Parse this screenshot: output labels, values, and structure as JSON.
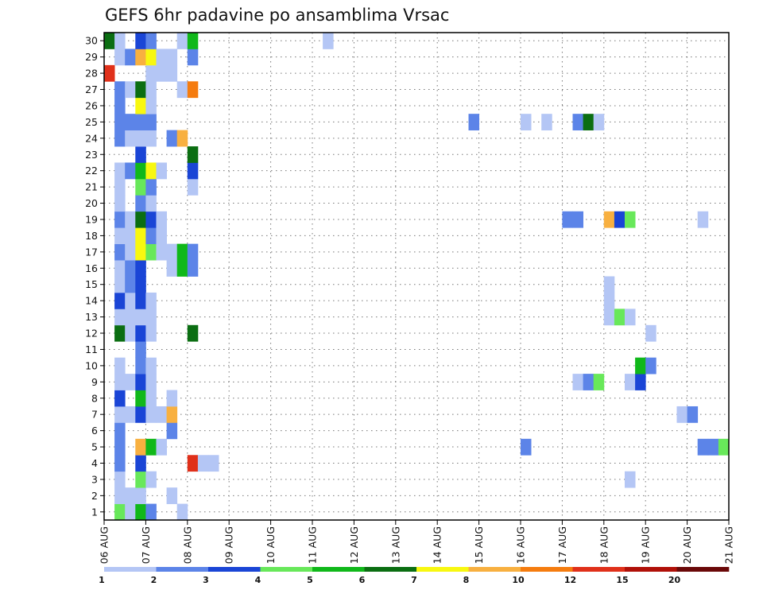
{
  "chart_data": {
    "type": "heatmap",
    "title": "GEFS 6hr padavine po ansamblima Vrsac",
    "xlabel": "",
    "ylabel": "",
    "x_ticks": [
      "06 AUG",
      "07 AUG",
      "08 AUG",
      "09 AUG",
      "10 AUG",
      "11 AUG",
      "12 AUG",
      "13 AUG",
      "14 AUG",
      "15 AUG",
      "16 AUG",
      "17 AUG",
      "18 AUG",
      "19 AUG",
      "20 AUG",
      "21 AUG"
    ],
    "y_ticks": [
      1,
      2,
      3,
      4,
      5,
      6,
      7,
      8,
      9,
      10,
      11,
      12,
      13,
      14,
      15,
      16,
      17,
      18,
      19,
      20,
      21,
      22,
      23,
      24,
      25,
      26,
      27,
      28,
      29,
      30
    ],
    "xlim_days": [
      0,
      15
    ],
    "time_step_hours": 6,
    "ylim": [
      0,
      30
    ],
    "grid": true,
    "legend_position": "bottom",
    "colorbar": {
      "levels": [
        "1",
        "2",
        "3",
        "4",
        "5",
        "6",
        "7",
        "8",
        "10",
        "12",
        "15",
        "20"
      ],
      "colors": [
        "#b4c6f5",
        "#5c84e8",
        "#1a45d6",
        "#68e85a",
        "#10b81a",
        "#0b6e12",
        "#f8f810",
        "#f8b040",
        "#f57c0f",
        "#e0301a",
        "#b01008",
        "#6a0808"
      ]
    },
    "value_encoding": "each cell stores the colorbar class index (1-12) of the 6-hour precipitation",
    "cells": [
      {
        "member": 1,
        "time_steps": [
          [
            1,
            4
          ],
          [
            2,
            1
          ],
          [
            3,
            5
          ],
          [
            4,
            2
          ],
          [
            7,
            1
          ]
        ]
      },
      {
        "member": 2,
        "time_steps": [
          [
            1,
            1
          ],
          [
            2,
            1
          ],
          [
            3,
            1
          ],
          [
            6,
            1
          ]
        ]
      },
      {
        "member": 3,
        "time_steps": [
          [
            1,
            1
          ],
          [
            3,
            4
          ],
          [
            4,
            1
          ],
          [
            50,
            1
          ]
        ]
      },
      {
        "member": 4,
        "time_steps": [
          [
            1,
            2
          ],
          [
            3,
            3
          ],
          [
            8,
            10
          ],
          [
            9,
            1
          ],
          [
            10,
            1
          ]
        ]
      },
      {
        "member": 5,
        "time_steps": [
          [
            1,
            2
          ],
          [
            3,
            8
          ],
          [
            4,
            5
          ],
          [
            5,
            1
          ],
          [
            40,
            2
          ],
          [
            57,
            2
          ],
          [
            58,
            2
          ],
          [
            59,
            4
          ]
        ]
      },
      {
        "member": 6,
        "time_steps": [
          [
            1,
            2
          ],
          [
            6,
            2
          ]
        ]
      },
      {
        "member": 7,
        "time_steps": [
          [
            1,
            1
          ],
          [
            2,
            1
          ],
          [
            3,
            3
          ],
          [
            4,
            1
          ],
          [
            5,
            1
          ],
          [
            6,
            8
          ],
          [
            55,
            1
          ],
          [
            56,
            2
          ]
        ]
      },
      {
        "member": 8,
        "time_steps": [
          [
            1,
            3
          ],
          [
            3,
            5
          ],
          [
            4,
            1
          ],
          [
            6,
            1
          ]
        ]
      },
      {
        "member": 9,
        "time_steps": [
          [
            1,
            1
          ],
          [
            2,
            1
          ],
          [
            3,
            3
          ],
          [
            4,
            1
          ],
          [
            45,
            1
          ],
          [
            46,
            2
          ],
          [
            47,
            4
          ],
          [
            50,
            1
          ],
          [
            51,
            3
          ]
        ]
      },
      {
        "member": 10,
        "time_steps": [
          [
            1,
            1
          ],
          [
            3,
            2
          ],
          [
            4,
            1
          ],
          [
            51,
            5
          ],
          [
            52,
            2
          ]
        ]
      },
      {
        "member": 11,
        "time_steps": [
          [
            3,
            2
          ]
        ]
      },
      {
        "member": 12,
        "time_steps": [
          [
            1,
            6
          ],
          [
            2,
            1
          ],
          [
            3,
            3
          ],
          [
            4,
            1
          ],
          [
            8,
            6
          ],
          [
            52,
            1
          ]
        ]
      },
      {
        "member": 13,
        "time_steps": [
          [
            1,
            1
          ],
          [
            2,
            1
          ],
          [
            3,
            1
          ],
          [
            4,
            1
          ],
          [
            48,
            1
          ],
          [
            49,
            4
          ],
          [
            50,
            1
          ]
        ]
      },
      {
        "member": 14,
        "time_steps": [
          [
            1,
            3
          ],
          [
            2,
            1
          ],
          [
            3,
            3
          ],
          [
            4,
            1
          ],
          [
            48,
            1
          ]
        ]
      },
      {
        "member": 15,
        "time_steps": [
          [
            1,
            1
          ],
          [
            2,
            2
          ],
          [
            3,
            3
          ],
          [
            48,
            1
          ]
        ]
      },
      {
        "member": 16,
        "time_steps": [
          [
            1,
            1
          ],
          [
            2,
            2
          ],
          [
            3,
            3
          ],
          [
            6,
            1
          ],
          [
            7,
            5
          ],
          [
            8,
            2
          ]
        ]
      },
      {
        "member": 17,
        "time_steps": [
          [
            1,
            2
          ],
          [
            2,
            1
          ],
          [
            3,
            7
          ],
          [
            4,
            4
          ],
          [
            5,
            1
          ],
          [
            6,
            1
          ],
          [
            7,
            5
          ],
          [
            8,
            2
          ]
        ]
      },
      {
        "member": 18,
        "time_steps": [
          [
            1,
            1
          ],
          [
            2,
            1
          ],
          [
            3,
            7
          ],
          [
            4,
            2
          ],
          [
            5,
            1
          ]
        ]
      },
      {
        "member": 19,
        "time_steps": [
          [
            1,
            2
          ],
          [
            2,
            1
          ],
          [
            3,
            6
          ],
          [
            4,
            3
          ],
          [
            5,
            1
          ],
          [
            44,
            2
          ],
          [
            45,
            2
          ],
          [
            48,
            8
          ],
          [
            49,
            3
          ],
          [
            50,
            4
          ],
          [
            57,
            1
          ]
        ]
      },
      {
        "member": 20,
        "time_steps": [
          [
            1,
            1
          ],
          [
            3,
            2
          ],
          [
            4,
            1
          ]
        ]
      },
      {
        "member": 21,
        "time_steps": [
          [
            1,
            1
          ],
          [
            3,
            4
          ],
          [
            4,
            2
          ],
          [
            8,
            1
          ]
        ]
      },
      {
        "member": 22,
        "time_steps": [
          [
            1,
            1
          ],
          [
            2,
            2
          ],
          [
            3,
            5
          ],
          [
            4,
            7
          ],
          [
            5,
            1
          ],
          [
            8,
            3
          ]
        ]
      },
      {
        "member": 23,
        "time_steps": [
          [
            3,
            3
          ],
          [
            8,
            6
          ]
        ]
      },
      {
        "member": 24,
        "time_steps": [
          [
            1,
            2
          ],
          [
            2,
            1
          ],
          [
            3,
            1
          ],
          [
            4,
            1
          ],
          [
            6,
            2
          ],
          [
            7,
            8
          ]
        ]
      },
      {
        "member": 25,
        "time_steps": [
          [
            1,
            2
          ],
          [
            2,
            2
          ],
          [
            3,
            2
          ],
          [
            4,
            2
          ],
          [
            35,
            2
          ],
          [
            40,
            1
          ],
          [
            42,
            1
          ],
          [
            45,
            2
          ],
          [
            46,
            6
          ],
          [
            47,
            1
          ]
        ]
      },
      {
        "member": 26,
        "time_steps": [
          [
            1,
            2
          ],
          [
            3,
            7
          ],
          [
            4,
            1
          ]
        ]
      },
      {
        "member": 27,
        "time_steps": [
          [
            1,
            2
          ],
          [
            2,
            1
          ],
          [
            3,
            6
          ],
          [
            4,
            1
          ],
          [
            7,
            1
          ],
          [
            8,
            9
          ]
        ]
      },
      {
        "member": 28,
        "time_steps": [
          [
            0,
            10
          ],
          [
            4,
            1
          ],
          [
            5,
            1
          ],
          [
            6,
            1
          ]
        ]
      },
      {
        "member": 29,
        "time_steps": [
          [
            1,
            1
          ],
          [
            2,
            2
          ],
          [
            3,
            8
          ],
          [
            4,
            7
          ],
          [
            5,
            1
          ],
          [
            6,
            1
          ],
          [
            8,
            2
          ]
        ]
      },
      {
        "member": 30,
        "time_steps": [
          [
            0,
            6
          ],
          [
            1,
            1
          ],
          [
            3,
            3
          ],
          [
            4,
            2
          ],
          [
            7,
            1
          ],
          [
            8,
            5
          ],
          [
            21,
            1
          ]
        ]
      }
    ]
  }
}
